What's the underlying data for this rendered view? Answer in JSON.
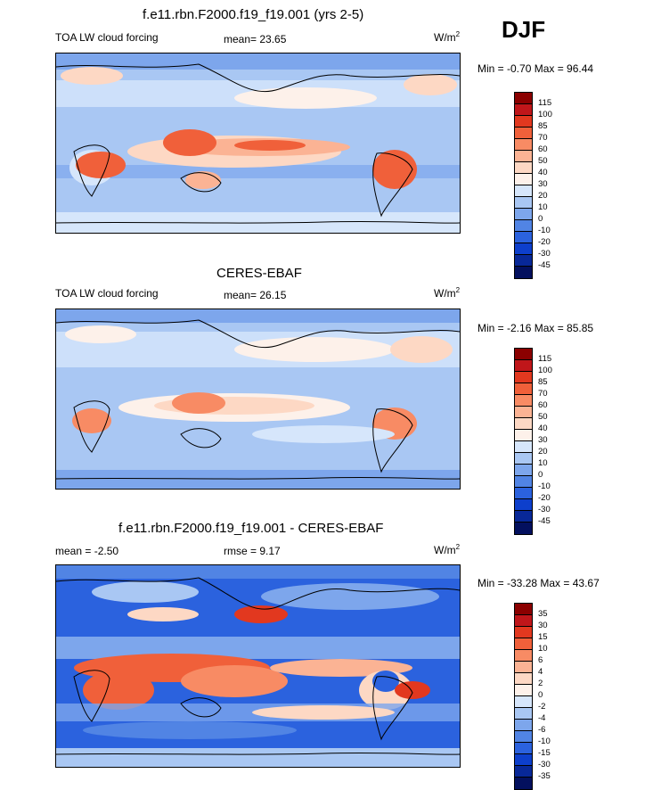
{
  "header": {
    "season": "DJF"
  },
  "panels": [
    {
      "id": "model",
      "title": "f.e11.rbn.F2000.f19_f19.001 (yrs 2-5)",
      "left_label": "TOA LW cloud forcing",
      "stat_label": "mean=  23.65",
      "units": "W/m",
      "units_sup": "2",
      "minmax": "Min =  -0.70 Max =  96.44",
      "colorbar": {
        "levels": [
          "115",
          "100",
          "85",
          "70",
          "60",
          "50",
          "40",
          "30",
          "20",
          "10",
          "0",
          "-10",
          "-20",
          "-30",
          "-45"
        ],
        "colors": [
          "#8b0000",
          "#c0161a",
          "#e2381f",
          "#f0603a",
          "#f88b64",
          "#fbb394",
          "#fdd8c4",
          "#fdf1ea",
          "#d6e6fb",
          "#a9c7f3",
          "#7da6ec",
          "#5184e4",
          "#2b62de",
          "#0d3fcc",
          "#082898",
          "#03105e"
        ]
      }
    },
    {
      "id": "obs",
      "title": "CERES-EBAF",
      "left_label": "TOA LW cloud forcing",
      "stat_label": "mean=  26.15",
      "units": "W/m",
      "units_sup": "2",
      "minmax": "Min =  -2.16 Max =  85.85",
      "colorbar": {
        "levels": [
          "115",
          "100",
          "85",
          "70",
          "60",
          "50",
          "40",
          "30",
          "20",
          "10",
          "0",
          "-10",
          "-20",
          "-30",
          "-45"
        ],
        "colors": [
          "#8b0000",
          "#c0161a",
          "#e2381f",
          "#f0603a",
          "#f88b64",
          "#fbb394",
          "#fdd8c4",
          "#fdf1ea",
          "#d6e6fb",
          "#a9c7f3",
          "#7da6ec",
          "#5184e4",
          "#2b62de",
          "#0d3fcc",
          "#082898",
          "#03105e"
        ]
      }
    },
    {
      "id": "diff",
      "title": "f.e11.rbn.F2000.f19_f19.001 - CERES-EBAF",
      "left_label": "mean =  -2.50",
      "stat_label": "rmse =   9.17",
      "units": "W/m",
      "units_sup": "2",
      "minmax": "Min = -33.28 Max =  43.67",
      "colorbar": {
        "levels": [
          "35",
          "30",
          "15",
          "10",
          "6",
          "4",
          "2",
          "0",
          "-2",
          "-4",
          "-6",
          "-10",
          "-15",
          "-30",
          "-35"
        ],
        "colors": [
          "#8b0000",
          "#c0161a",
          "#e2381f",
          "#f0603a",
          "#f88b64",
          "#fbb394",
          "#fdd8c4",
          "#fdf1ea",
          "#d6e6fb",
          "#a9c7f3",
          "#7da6ec",
          "#5184e4",
          "#2b62de",
          "#0d3fcc",
          "#082898",
          "#03105e"
        ]
      }
    }
  ]
}
